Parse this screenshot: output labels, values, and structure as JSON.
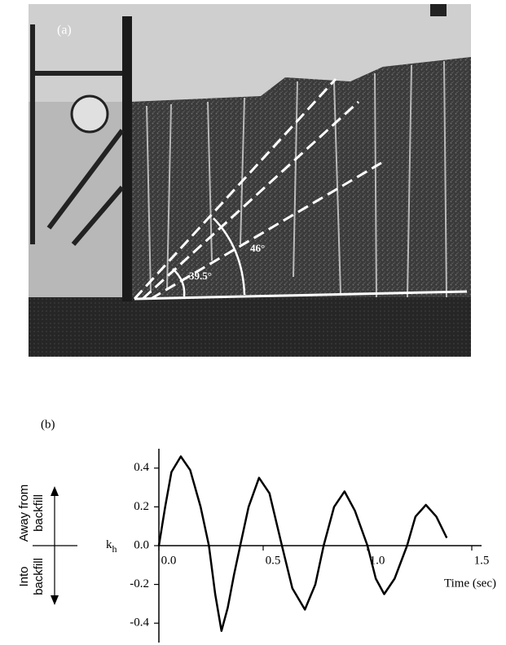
{
  "photo": {
    "label": "(a)",
    "angle_small": "39.5°",
    "angle_large": "46°"
  },
  "panel_label": "(b)",
  "direction_labels": {
    "up": [
      "Away from",
      "backfill"
    ],
    "down": [
      "Into",
      "backfill"
    ]
  },
  "chart_data": {
    "type": "line",
    "ylabel": {
      "text": "k",
      "subscript": "h"
    },
    "xlabel": "Time (sec)",
    "x": [
      0,
      0.03,
      0.06,
      0.105,
      0.15,
      0.2,
      0.24,
      0.27,
      0.3,
      0.33,
      0.36,
      0.39,
      0.43,
      0.48,
      0.53,
      0.59,
      0.64,
      0.7,
      0.75,
      0.79,
      0.84,
      0.89,
      0.94,
      1.0,
      1.04,
      1.08,
      1.13,
      1.19,
      1.23,
      1.28,
      1.33,
      1.38
    ],
    "values": [
      0,
      0.2,
      0.38,
      0.46,
      0.39,
      0.2,
      0,
      -0.25,
      -0.44,
      -0.32,
      -0.15,
      0,
      0.2,
      0.35,
      0.27,
      0,
      -0.22,
      -0.33,
      -0.2,
      0,
      0.2,
      0.28,
      0.18,
      0,
      -0.17,
      -0.25,
      -0.17,
      0,
      0.15,
      0.21,
      0.15,
      0.04
    ],
    "color": "#000000",
    "xlim": [
      0,
      1.5
    ],
    "xticks": [
      {
        "value": 0,
        "label": "0.0"
      },
      0.5,
      {
        "value": 1,
        "label": "1.0"
      },
      1.5
    ],
    "ylim": [
      -0.5,
      0.5
    ],
    "yticks": [
      -0.4,
      -0.2,
      {
        "value": 0,
        "label": "0.0"
      },
      0.2,
      0.4
    ]
  }
}
